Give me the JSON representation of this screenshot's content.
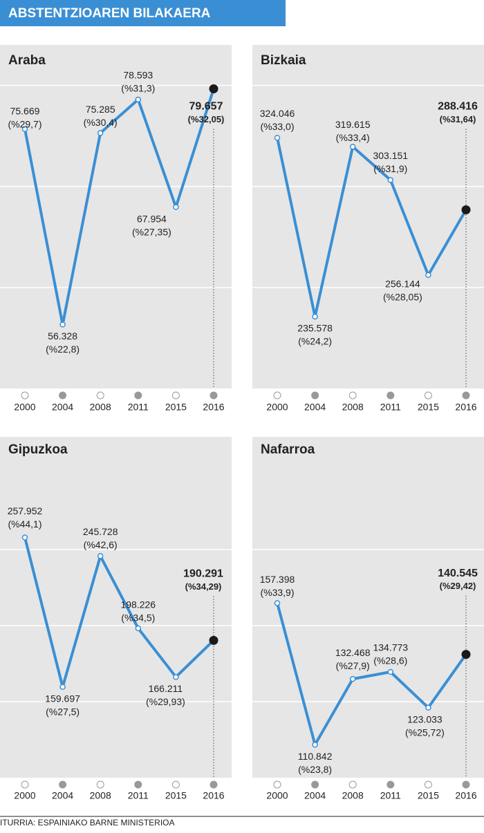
{
  "header": {
    "title": "ABSTENTZIOAREN BILAKAERA"
  },
  "source": "ITURRIA: ESPAINIAKO BARNE MINISTERIOA",
  "chart_data": [
    {
      "type": "line",
      "title": "Araba",
      "categories": [
        "2000",
        "2004",
        "2008",
        "2011",
        "2015",
        "2016"
      ],
      "values": [
        75669,
        56328,
        75285,
        78593,
        67954,
        79657
      ],
      "value_labels": [
        "75.669",
        "56.328",
        "75.285",
        "78.593",
        "67.954",
        "79.657"
      ],
      "share_labels": [
        "(%29,7)",
        "(%22,8)",
        "(%30,4)",
        "(%31,3)",
        "(%27,35)",
        "(%32,05)"
      ],
      "color": "#3a8fd4",
      "ylim": [
        50000,
        84000
      ],
      "yticks": [
        60000,
        70000,
        80000
      ],
      "grid": true
    },
    {
      "type": "line",
      "title": "Bizkaia",
      "categories": [
        "2000",
        "2004",
        "2008",
        "2011",
        "2015",
        "2016"
      ],
      "values": [
        324046,
        235578,
        319615,
        303151,
        256144,
        288416
      ],
      "value_labels": [
        "324.046",
        "235.578",
        "319.615",
        "303.151",
        "256.144",
        "288.416"
      ],
      "share_labels": [
        "(%33,0)",
        "(%24,2)",
        "(%33,4)",
        "(%31,9)",
        "(%28,05)",
        "(%31,64)"
      ],
      "color": "#3a8fd4",
      "ylim": [
        200000,
        370000
      ],
      "yticks": [
        250000,
        300000,
        350000
      ],
      "grid": true
    },
    {
      "type": "line",
      "title": "Gipuzkoa",
      "categories": [
        "2000",
        "2004",
        "2008",
        "2011",
        "2015",
        "2016"
      ],
      "values": [
        257952,
        159697,
        245728,
        198226,
        166211,
        190291
      ],
      "value_labels": [
        "257.952",
        "159.697",
        "245.728",
        "198.226",
        "166.211",
        "190.291"
      ],
      "share_labels": [
        "(%44,1)",
        "(%27,5)",
        "(%42,6)",
        "(%34,5)",
        "(%29,93)",
        "(%34,29)"
      ],
      "color": "#3a8fd4",
      "ylim": [
        100000,
        300000
      ],
      "yticks": [
        150000,
        200000,
        250000
      ],
      "grid": true
    },
    {
      "type": "line",
      "title": "Nafarroa",
      "categories": [
        "2000",
        "2004",
        "2008",
        "2011",
        "2015",
        "2016"
      ],
      "values": [
        157398,
        110842,
        132468,
        134773,
        123033,
        140545
      ],
      "value_labels": [
        "157.398",
        "110.842",
        "132.468",
        "134.773",
        "123.033",
        "140.545"
      ],
      "share_labels": [
        "(%33,9)",
        "(%23,8)",
        "(%27,9)",
        "(%28,6)",
        "(%25,72)",
        "(%29,42)"
      ],
      "color": "#3a8fd4",
      "ylim": [
        100000,
        200000
      ],
      "yticks": [
        125000,
        150000,
        175000
      ],
      "grid": true
    }
  ]
}
